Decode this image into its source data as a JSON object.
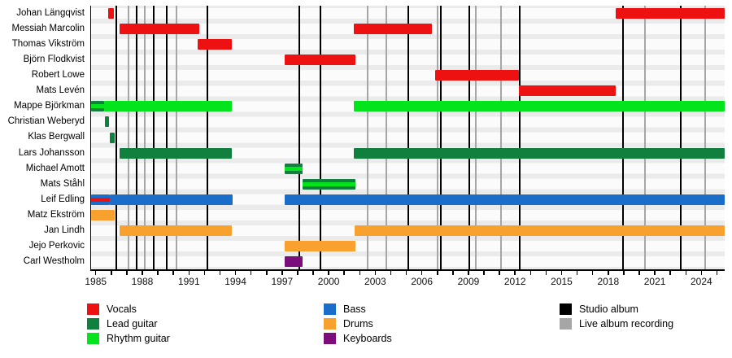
{
  "chart_data": {
    "type": "timeline",
    "x_axis": {
      "year_min": 1984.7,
      "year_max": 2025.5,
      "minor_tick_step": 1,
      "label_years": [
        1985,
        1988,
        1991,
        1994,
        1997,
        2000,
        2003,
        2006,
        2009,
        2012,
        2015,
        2018,
        2021,
        2024
      ]
    },
    "roles": {
      "vocals": {
        "label": "Vocals",
        "color": "#ee1111"
      },
      "lead_guitar": {
        "label": "Lead guitar",
        "color": "#11803e"
      },
      "rhythm_guitar": {
        "label": "Rhythm guitar",
        "color": "#03e41c"
      },
      "bass": {
        "label": "Bass",
        "color": "#1a6dc9"
      },
      "drums": {
        "label": "Drums",
        "color": "#f8a12f"
      },
      "keyboards": {
        "label": "Keyboards",
        "color": "#7c0e7c"
      }
    },
    "events": {
      "studio_album": {
        "label": "Studio album",
        "color": "#000000",
        "years": [
          1986.3,
          1987.65,
          1988.75,
          1989.55,
          1992.2,
          1998.1,
          1999.45,
          2005.1,
          2007.2,
          2009.05,
          2012.3,
          2018.95,
          2022.65
        ]
      },
      "live_album": {
        "label": "Live album recording",
        "color": "#a6a6a6",
        "years": [
          1987.1,
          1988.15,
          1990.2,
          2002.5,
          2003.7,
          2007.0,
          2009.45,
          2011.1,
          2020.35,
          2024.25
        ]
      }
    },
    "members": [
      {
        "name": "Johan Längqvist",
        "segments": [
          {
            "role": "vocals",
            "start": 1985.8,
            "end": 1986.15
          },
          {
            "role": "vocals",
            "start": 2018.5,
            "end": 2025.5
          }
        ]
      },
      {
        "name": "Messiah Marcolin",
        "segments": [
          {
            "role": "vocals",
            "start": 1986.55,
            "end": 1991.65
          },
          {
            "role": "vocals",
            "start": 2001.6,
            "end": 2006.65
          }
        ]
      },
      {
        "name": "Thomas Vikström",
        "segments": [
          {
            "role": "vocals",
            "start": 1991.55,
            "end": 1993.75
          }
        ]
      },
      {
        "name": "Björn Flodkvist",
        "segments": [
          {
            "role": "vocals",
            "start": 1997.15,
            "end": 2001.7
          }
        ]
      },
      {
        "name": "Robert Lowe",
        "segments": [
          {
            "role": "vocals",
            "start": 2006.85,
            "end": 2012.25
          }
        ]
      },
      {
        "name": "Mats Levén",
        "segments": [
          {
            "role": "vocals",
            "start": 2012.25,
            "end": 2018.5
          }
        ]
      },
      {
        "name": "Mappe Björkman",
        "segments": [
          {
            "role": "lead_guitar",
            "secondary": "rhythm_guitar",
            "start": 1984.7,
            "end": 1985.55
          },
          {
            "role": "rhythm_guitar",
            "start": 1985.55,
            "end": 1993.75
          },
          {
            "role": "rhythm_guitar",
            "start": 2001.6,
            "end": 2025.5
          }
        ]
      },
      {
        "name": "Christian Weberyd",
        "segments": [
          {
            "role": "lead_guitar",
            "start": 1985.6,
            "end": 1985.85
          }
        ]
      },
      {
        "name": "Klas Bergwall",
        "segments": [
          {
            "role": "lead_guitar",
            "start": 1985.9,
            "end": 1986.2
          }
        ]
      },
      {
        "name": "Lars Johansson",
        "segments": [
          {
            "role": "lead_guitar",
            "start": 1986.55,
            "end": 1993.75
          },
          {
            "role": "lead_guitar",
            "start": 2001.6,
            "end": 2025.5
          }
        ]
      },
      {
        "name": "Michael Amott",
        "segments": [
          {
            "role": "lead_guitar",
            "secondary": "rhythm_guitar",
            "start": 1997.15,
            "end": 1998.3
          }
        ]
      },
      {
        "name": "Mats Ståhl",
        "segments": [
          {
            "role": "lead_guitar",
            "secondary": "rhythm_guitar",
            "start": 1998.3,
            "end": 2001.7
          }
        ]
      },
      {
        "name": "Leif Edling",
        "segments": [
          {
            "role": "bass",
            "secondary": "vocals",
            "start": 1984.7,
            "end": 1985.9
          },
          {
            "role": "bass",
            "start": 1985.9,
            "end": 1993.8
          },
          {
            "role": "bass",
            "start": 1997.15,
            "end": 2025.5
          }
        ]
      },
      {
        "name": "Matz Ekström",
        "segments": [
          {
            "role": "drums",
            "start": 1984.7,
            "end": 1986.2
          }
        ]
      },
      {
        "name": "Jan Lindh",
        "segments": [
          {
            "role": "drums",
            "start": 1986.55,
            "end": 1993.75
          },
          {
            "role": "drums",
            "start": 2001.65,
            "end": 2025.5
          }
        ]
      },
      {
        "name": "Jejo Perkovic",
        "segments": [
          {
            "role": "drums",
            "start": 1997.15,
            "end": 2001.7
          }
        ]
      },
      {
        "name": "Carl Westholm",
        "segments": [
          {
            "role": "keyboards",
            "start": 1997.15,
            "end": 1998.3
          }
        ]
      }
    ],
    "legend_columns": [
      [
        "vocals",
        "lead_guitar",
        "rhythm_guitar"
      ],
      [
        "bass",
        "drums",
        "keyboards"
      ],
      [
        "studio_album",
        "live_album"
      ]
    ]
  }
}
